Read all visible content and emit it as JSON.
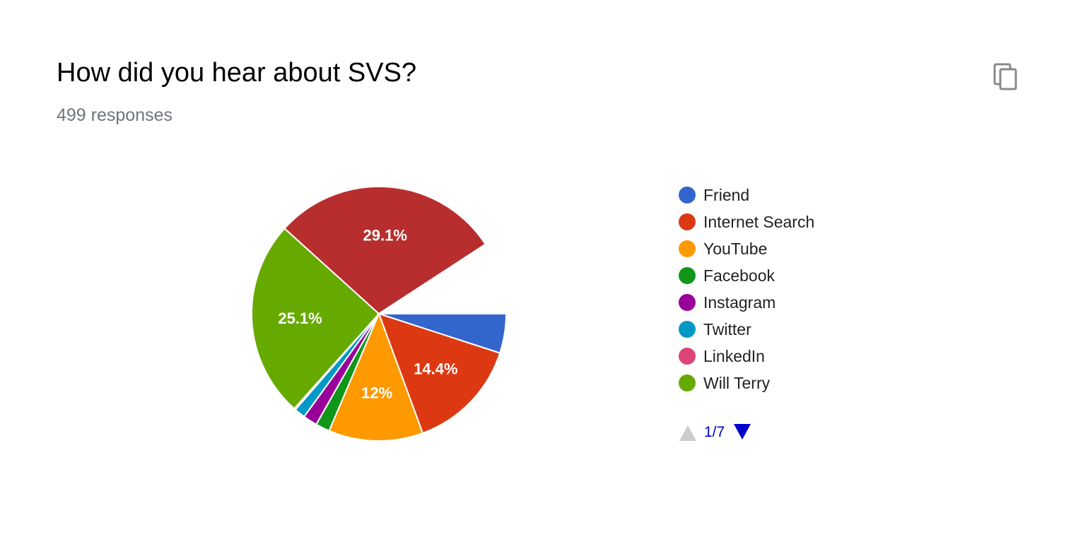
{
  "header": {
    "title": "How did you hear about SVS?",
    "responses": "499 responses",
    "copy_icon": "copy-icon"
  },
  "pager": {
    "text": "1/7",
    "prev_icon": "triangle-up-icon",
    "next_icon": "triangle-down-icon",
    "prev_color": "#cccccc",
    "next_color": "#0000cc"
  },
  "chart_data": {
    "type": "pie",
    "total_responses": 499,
    "legend_position": "right",
    "slices": [
      {
        "label": "Friend",
        "value": 5.0,
        "color": "#3366cc",
        "data_label": ""
      },
      {
        "label": "Internet Search",
        "value": 14.4,
        "color": "#dc3912",
        "data_label": "14.4%"
      },
      {
        "label": "YouTube",
        "value": 12,
        "color": "#ff9900",
        "data_label": "12%"
      },
      {
        "label": "Facebook",
        "value": 1.8,
        "color": "#109618",
        "data_label": ""
      },
      {
        "label": "Instagram",
        "value": 1.8,
        "color": "#990099",
        "data_label": ""
      },
      {
        "label": "Twitter",
        "value": 1.4,
        "color": "#0099c6",
        "data_label": ""
      },
      {
        "label": "LinkedIn",
        "value": 0.2,
        "color": "#dd4477",
        "data_label": ""
      },
      {
        "label": "Will Terry",
        "value": 25.1,
        "color": "#66aa00",
        "data_label": "25.1%"
      },
      {
        "label": "",
        "value": 29.1,
        "color": "#b82e2e",
        "data_label": "29.1%"
      },
      {
        "label": "",
        "value": 9.2,
        "color": "#ffffff",
        "data_label": ""
      }
    ]
  }
}
